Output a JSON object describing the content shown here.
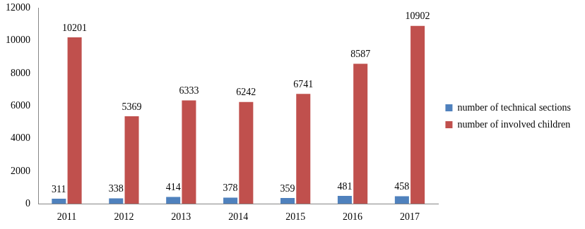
{
  "chart_data": {
    "type": "bar",
    "categories": [
      "2011",
      "2012",
      "2013",
      "2014",
      "2015",
      "2016",
      "2017"
    ],
    "series": [
      {
        "name": "number of technical sections",
        "color": "#4f81bd",
        "values": [
          311,
          338,
          414,
          378,
          359,
          481,
          458
        ]
      },
      {
        "name": "number of involved children",
        "color": "#c0504d",
        "values": [
          10201,
          5369,
          6333,
          6242,
          6741,
          8587,
          10902
        ]
      }
    ],
    "ylim": [
      0,
      12000
    ],
    "yticks": [
      0,
      2000,
      4000,
      6000,
      8000,
      10000,
      12000
    ],
    "grid": false,
    "legend": "right",
    "data_labels": true
  }
}
